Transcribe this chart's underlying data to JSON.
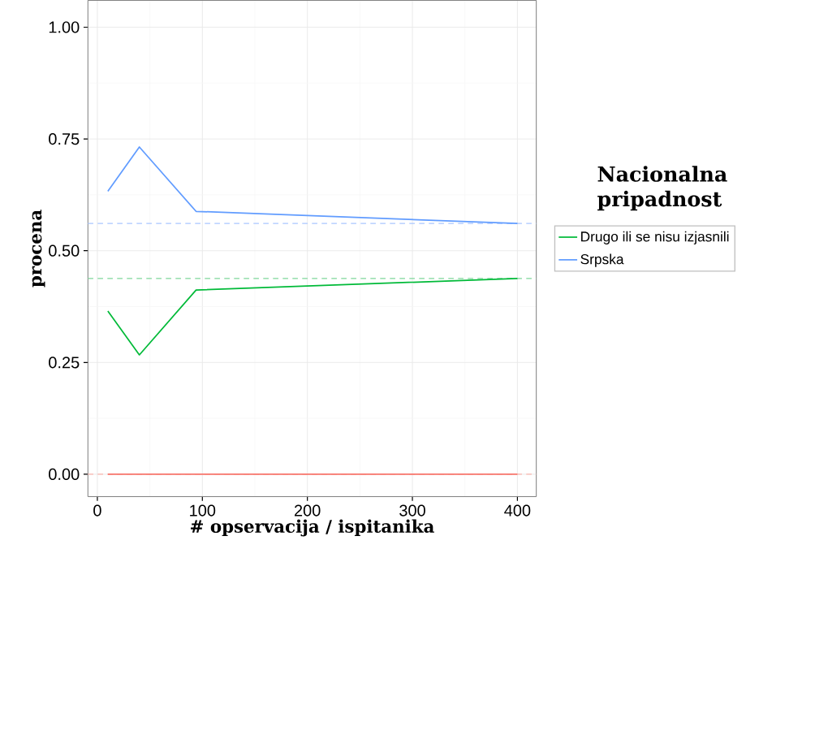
{
  "chart_data": {
    "type": "line",
    "xlabel": "# opservacija / ispitanika",
    "ylabel": "procena",
    "legend_title": "Nacionalna pripadnost",
    "x": [
      10,
      40,
      94,
      400
    ],
    "series": [
      {
        "name": "Drugo ili se nisu izjasnili",
        "color": "#00ba38",
        "values": [
          0.365,
          0.267,
          0.412,
          0.438
        ]
      },
      {
        "name": "Srpska",
        "color": "#619cff",
        "values": [
          0.633,
          0.732,
          0.588,
          0.561
        ]
      },
      {
        "color": "#f8766d",
        "values": [
          0,
          0,
          0,
          0
        ]
      }
    ],
    "ref_lines": [
      {
        "axis": "y",
        "value": 0.561,
        "color": "#a9c6ff",
        "line_style": "dashed"
      },
      {
        "axis": "y",
        "value": 0.438,
        "color": "#7fd69a",
        "line_style": "dashed"
      },
      {
        "axis": "y",
        "value": 0,
        "color": "#fbb5ae",
        "line_style": "dashed"
      }
    ],
    "xlim": [
      -9,
      418
    ],
    "ylim": [
      -0.05,
      1.06
    ],
    "xticks": [
      0,
      100,
      200,
      300,
      400
    ],
    "yticks": [
      {
        "value": 0,
        "label": "0.00"
      },
      {
        "value": 0.25,
        "label": "0.25"
      },
      {
        "value": 0.5,
        "label": "0.50"
      },
      {
        "value": 0.75,
        "label": "0.75"
      },
      {
        "value": 1,
        "label": "1.00"
      }
    ],
    "grid": true,
    "legend": "right",
    "line_style": "solid",
    "marker": "none"
  }
}
